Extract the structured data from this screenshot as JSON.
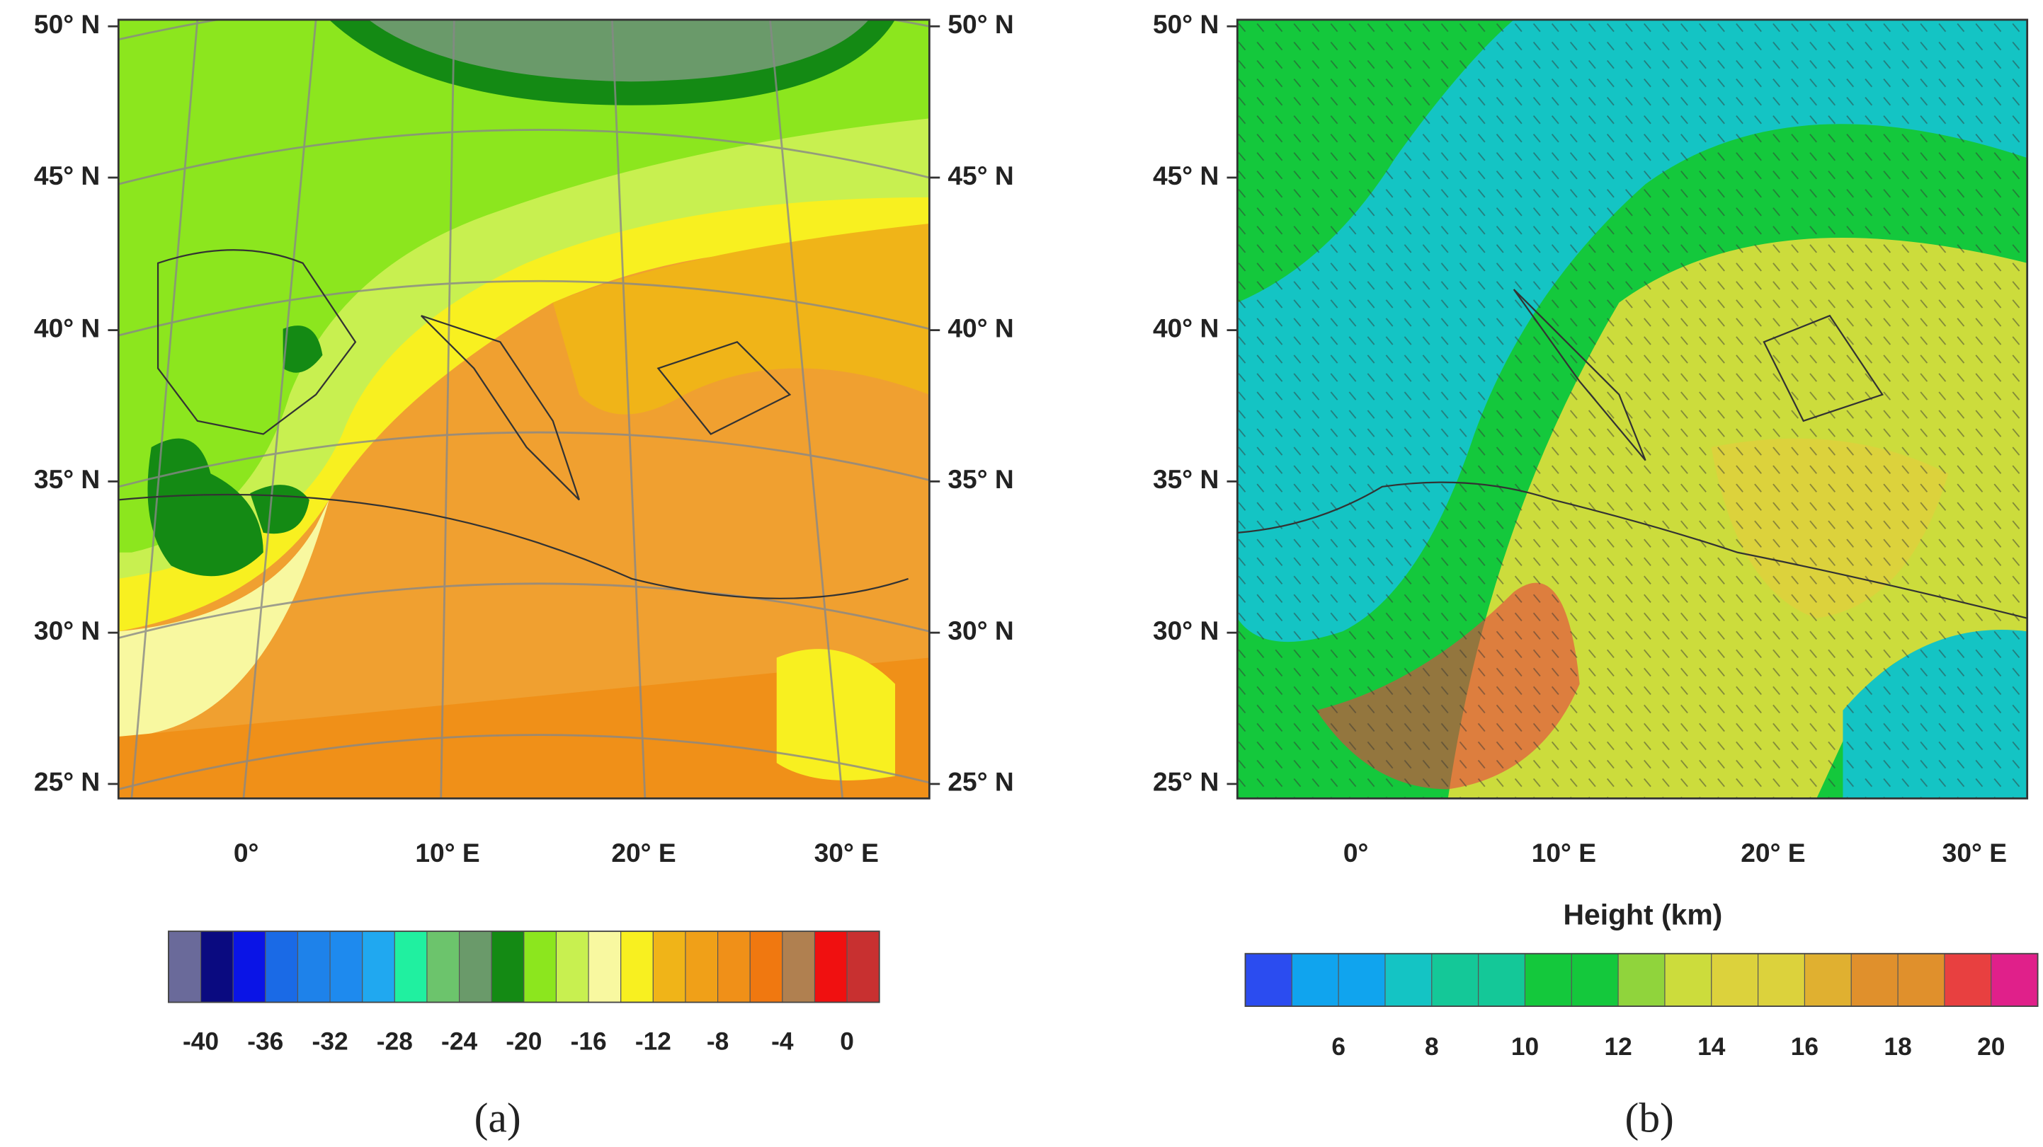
{
  "panels": [
    {
      "lat_labels": [
        "50° N",
        "45° N",
        "40° N",
        "35° N",
        "30° N",
        "25° N"
      ],
      "lon_labels": [
        "0°",
        "10° E",
        "20° E",
        "30° E"
      ],
      "colorbar": {
        "colors": [
          "#6a6a9a",
          "#0a0a80",
          "#0a14e6",
          "#1a6ae6",
          "#1e82ea",
          "#1e8aee",
          "#20a8f0",
          "#20f0a0",
          "#6cc46c",
          "#6a9a6a",
          "#148a14",
          "#8ce61e",
          "#c8f050",
          "#f8f8a0",
          "#f8f020",
          "#f0b418",
          "#f0a018",
          "#f09018",
          "#f07810",
          "#b08050",
          "#f01010",
          "#c83030"
        ],
        "lim": [
          -42,
          2
        ],
        "ticks": [
          -40,
          -36,
          -32,
          -28,
          -24,
          -20,
          -16,
          -12,
          -8,
          -4,
          0
        ]
      },
      "caption": "(a)"
    },
    {
      "lat_labels": [
        "50° N",
        "45° N",
        "40° N",
        "35° N",
        "30° N",
        "25° N"
      ],
      "lon_labels": [
        "0°",
        "10° E",
        "20° E",
        "30° E"
      ],
      "colorbar": {
        "title": "Height (km)",
        "colors": [
          "#2b4cf0",
          "#10a4ee",
          "#10a4ee",
          "#14c4c4",
          "#14c898",
          "#14c898",
          "#14c83c",
          "#14c83c",
          "#90d43c",
          "#ccdc3c",
          "#dcd23c",
          "#dcd23c",
          "#e0b030",
          "#e0902c",
          "#e0902c",
          "#e84040",
          "#e0208a"
        ],
        "lim": [
          4,
          21
        ],
        "ticks": [
          6,
          8,
          10,
          12,
          14,
          16,
          18,
          20
        ]
      },
      "caption": "(b)"
    }
  ]
}
